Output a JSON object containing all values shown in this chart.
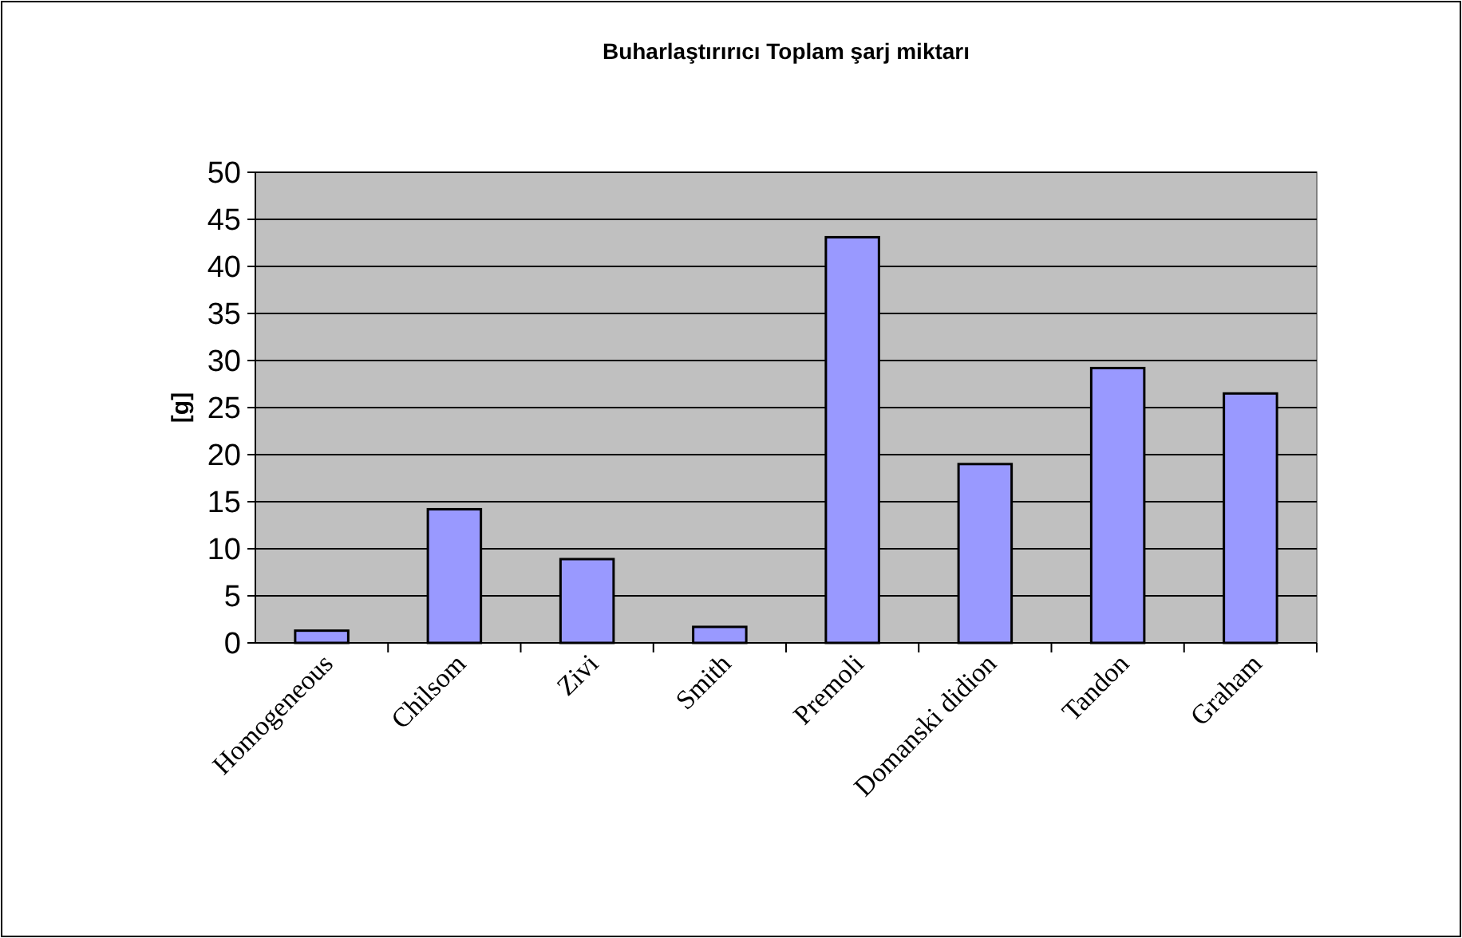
{
  "chart_data": {
    "type": "bar",
    "title": "Buharlaştırırıcı Toplam şarj miktarı",
    "ylabel": "[g]",
    "categories": [
      "Homogeneous",
      "Chilsom",
      "Zivi",
      "Smith",
      "Premoli",
      "Domanski didion",
      "Tandon",
      "Graham"
    ],
    "values": [
      1.3,
      14.2,
      8.9,
      1.7,
      43.1,
      19.0,
      29.2,
      26.5
    ],
    "color": "#9999ff",
    "ylim": [
      0,
      50
    ],
    "yticks": [
      0,
      5,
      10,
      15,
      20,
      25,
      30,
      35,
      40,
      45,
      50
    ],
    "grid": "y"
  }
}
